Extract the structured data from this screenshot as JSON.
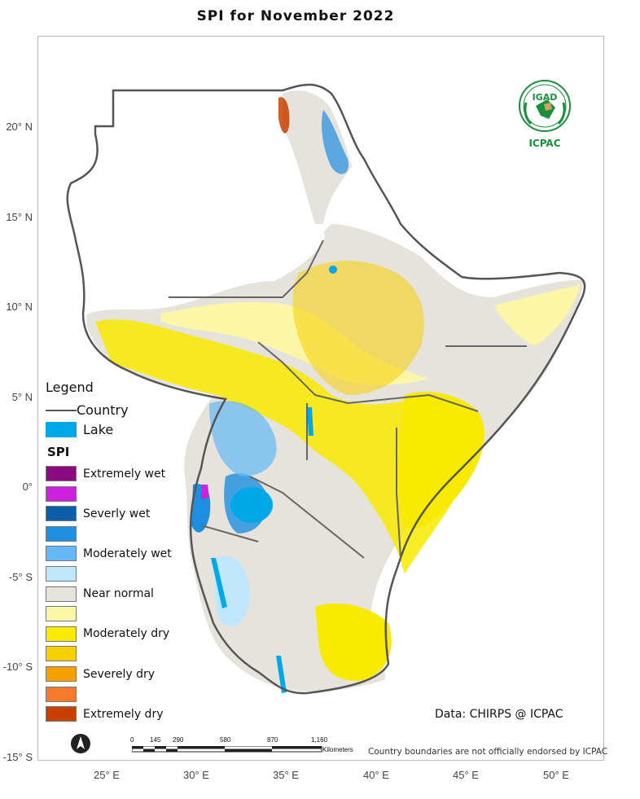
{
  "title": "SPI   for   November 2022",
  "lat_labels": [
    "20° N",
    "15° N",
    "10° N",
    "5° N",
    "0°",
    "-5° S",
    "-10° S",
    "-15° S"
  ],
  "lon_labels": [
    "25° E",
    "30° E",
    "35° E",
    "40° E",
    "45° E",
    "50° E"
  ],
  "legend": {
    "title": "Legend",
    "country_label": "Country",
    "lake_label": "Lake",
    "spi_heading": "SPI",
    "classes": [
      {
        "label": "Extremely wet",
        "color": "#8b0a80"
      },
      {
        "label": "",
        "color": "#cc22dd"
      },
      {
        "label": "Severly wet",
        "color": "#0a5fa8"
      },
      {
        "label": "",
        "color": "#1e8fe0"
      },
      {
        "label": "Moderately wet",
        "color": "#63b8f5"
      },
      {
        "label": "",
        "color": "#bfe6fb"
      },
      {
        "label": "Near normal",
        "color": "#e6e3dc"
      },
      {
        "label": "",
        "color": "#fbf7a6"
      },
      {
        "label": "Moderately dry",
        "color": "#f8ea00"
      },
      {
        "label": "",
        "color": "#f5cf00"
      },
      {
        "label": "Severely dry",
        "color": "#f5a200"
      },
      {
        "label": "",
        "color": "#f57a2e"
      },
      {
        "label": "Extremely dry",
        "color": "#c83f00"
      }
    ],
    "lake_color": "#00a8e8",
    "country_color": "#555555"
  },
  "scalebar": {
    "ticks": [
      "0",
      "145",
      "290",
      "580",
      "870",
      "1,160"
    ],
    "unit": "Kilometers"
  },
  "credit": "Data: CHIRPS @ ICPAC",
  "disclaimer": "Country boundaries are not officially endorsed by ICPAC",
  "logo": {
    "top_text": "IGAD",
    "bottom_text": "ICPAC",
    "color": "#1a8f3c"
  },
  "north_arrow": "north-arrow-icon"
}
